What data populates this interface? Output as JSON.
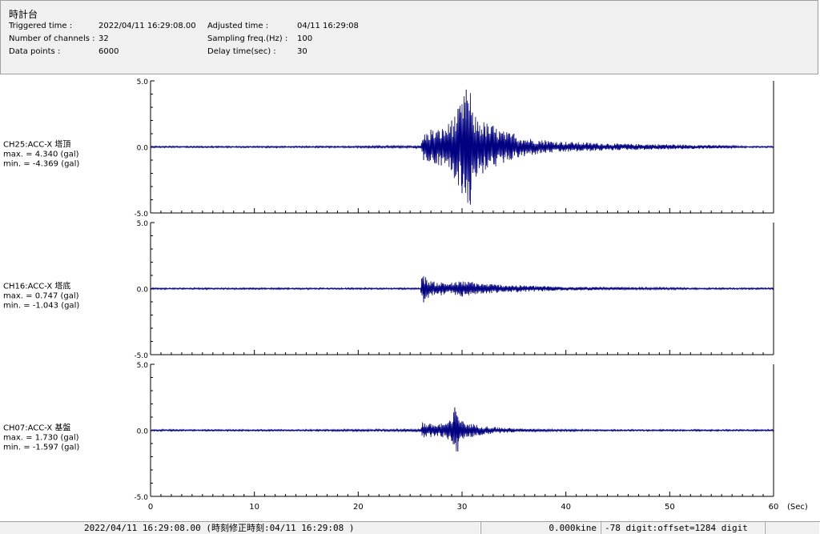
{
  "header": {
    "title": "時計台",
    "fields": [
      {
        "label": "Triggered time :",
        "value": "2022/04/11 16:29:08.00"
      },
      {
        "label": "Number of channels :",
        "value": "32"
      },
      {
        "label": "Data points :",
        "value": "6000"
      },
      {
        "label": "Adjusted time :",
        "value": "04/11 16:29:08"
      },
      {
        "label": "Sampling freq.(Hz) :",
        "value": "100"
      },
      {
        "label": "Delay time(sec) :",
        "value": "30"
      }
    ]
  },
  "chart_data": {
    "type": "line",
    "xlabel": "(Sec)",
    "xlim": [
      0,
      60
    ],
    "xticks": [
      "0",
      "10",
      "20",
      "30",
      "40",
      "50",
      "60"
    ],
    "ylim": [
      -5.0,
      5.0
    ],
    "yticks": [
      "5.0",
      "0.0",
      "-5.0"
    ],
    "line_color": "#000080",
    "series": [
      {
        "name": "CH25:ACC-X 塔頂",
        "max": "max. = 4.340 (gal)",
        "min": "min. = -4.369 (gal)",
        "x": [
          0,
          26,
          26.3,
          27,
          28,
          29,
          30,
          30.4,
          30.8,
          31,
          32,
          33,
          34,
          35,
          36,
          38,
          40,
          45,
          50,
          55,
          60
        ],
        "y": [
          0,
          0.1,
          -1.0,
          1.3,
          -1.4,
          2.0,
          -3.5,
          4.34,
          -4.369,
          2.6,
          -2.0,
          1.6,
          -1.2,
          1.0,
          -0.7,
          0.5,
          -0.4,
          0.25,
          -0.2,
          0.12,
          0
        ]
      },
      {
        "name": "CH16:ACC-X 塔底",
        "max": "max. = 0.747 (gal)",
        "min": "min. = -1.043 (gal)",
        "x": [
          0,
          26,
          26.1,
          26.3,
          27,
          28,
          29,
          30,
          31,
          32,
          34,
          36,
          40,
          45,
          50,
          55,
          60
        ],
        "y": [
          0,
          0.05,
          0.747,
          -1.043,
          0.55,
          -0.5,
          0.45,
          -0.6,
          0.5,
          -0.4,
          0.3,
          -0.25,
          0.15,
          -0.1,
          0.08,
          -0.05,
          0
        ]
      },
      {
        "name": "CH07:ACC-X 基盤",
        "max": "max. = 1.730 (gal)",
        "min": "min. = -1.597 (gal)",
        "x": [
          0,
          26,
          26.2,
          27,
          28,
          29,
          29.3,
          29.6,
          30,
          31,
          32,
          34,
          36,
          40,
          45,
          50,
          55,
          60
        ],
        "y": [
          0,
          0.1,
          0.6,
          -0.5,
          0.5,
          -0.8,
          1.73,
          -1.597,
          0.7,
          -0.5,
          0.35,
          -0.2,
          0.12,
          -0.08,
          0.05,
          -0.03,
          0.02,
          0
        ]
      }
    ]
  },
  "status": {
    "time": "2022/04/11 16:29:08.00 (時刻修正時刻:04/11 16:29:08 )",
    "kine": "0.000kine",
    "digit": "-78 digit:offset=1284 digit"
  }
}
